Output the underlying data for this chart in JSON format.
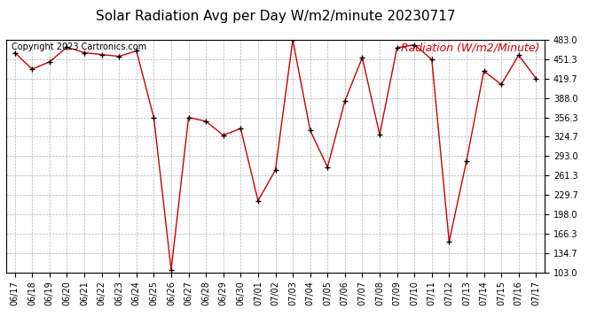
{
  "title": "Solar Radiation Avg per Day W/m2/minute 20230717",
  "copyright": "Copyright 2023 Cartronics.com",
  "legend_label": "Radiation (W/m2/Minute)",
  "dates": [
    "06/17",
    "06/18",
    "06/19",
    "06/20",
    "06/21",
    "06/22",
    "06/23",
    "06/24",
    "06/25",
    "06/26",
    "06/27",
    "06/28",
    "06/29",
    "06/30",
    "07/01",
    "07/02",
    "07/03",
    "07/04",
    "07/05",
    "07/06",
    "07/07",
    "07/08",
    "07/09",
    "07/10",
    "07/11",
    "07/12",
    "07/13",
    "07/14",
    "07/15",
    "07/16",
    "07/17"
  ],
  "values": [
    462,
    435,
    447,
    471,
    462,
    459,
    456,
    465,
    356,
    107,
    356,
    350,
    327,
    338,
    220,
    270,
    483,
    335,
    275,
    383,
    454,
    328,
    470,
    475,
    451,
    153,
    285,
    432,
    410,
    458,
    420
  ],
  "line_color": "#cc0000",
  "marker_color": "#000000",
  "background_color": "#ffffff",
  "grid_color": "#aaaaaa",
  "ylim": [
    103.0,
    483.0
  ],
  "yticks": [
    103.0,
    134.7,
    166.3,
    198.0,
    229.7,
    261.3,
    293.0,
    324.7,
    356.3,
    388.0,
    419.7,
    451.3,
    483.0
  ],
  "title_fontsize": 11,
  "copyright_fontsize": 7,
  "legend_fontsize": 9,
  "tick_fontsize": 7
}
